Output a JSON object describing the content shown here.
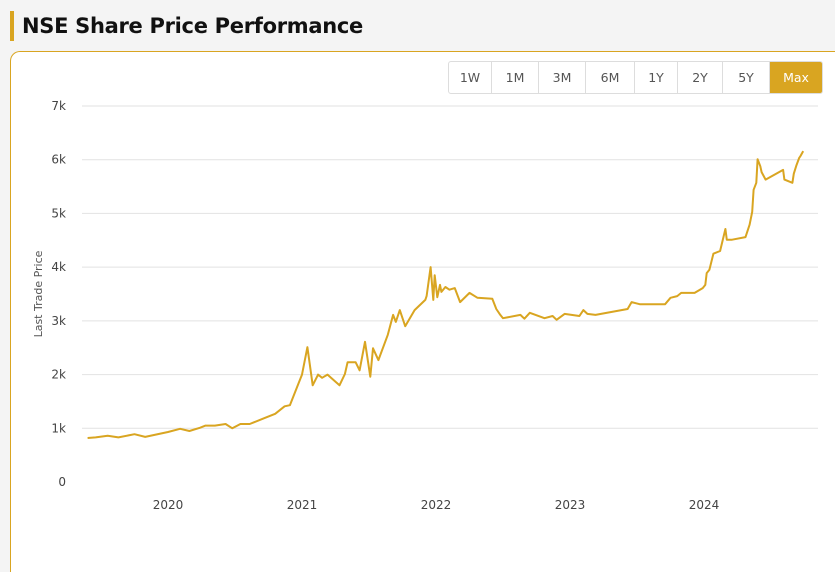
{
  "header": {
    "title": "NSE Share Price Performance"
  },
  "range_buttons": [
    {
      "label": "1W",
      "active": false
    },
    {
      "label": "1M",
      "active": false
    },
    {
      "label": "3M",
      "active": false
    },
    {
      "label": "6M",
      "active": false
    },
    {
      "label": "1Y",
      "active": false
    },
    {
      "label": "2Y",
      "active": false
    },
    {
      "label": "5Y",
      "active": false
    },
    {
      "label": "Max",
      "active": true
    }
  ],
  "colors": {
    "accent": "#d9a521",
    "line": "#d9a521",
    "grid": "#e2e2e2"
  },
  "chart_data": {
    "type": "line",
    "title": "",
    "xlabel": "",
    "ylabel": "Last Trade Price",
    "ylim": [
      0,
      7000
    ],
    "xlim": [
      2019.4,
      2024.74
    ],
    "yticks": [
      {
        "v": 0,
        "label": "0"
      },
      {
        "v": 1000,
        "label": "1k"
      },
      {
        "v": 2000,
        "label": "2k"
      },
      {
        "v": 3000,
        "label": "3k"
      },
      {
        "v": 4000,
        "label": "4k"
      },
      {
        "v": 5000,
        "label": "5k"
      },
      {
        "v": 6000,
        "label": "6k"
      },
      {
        "v": 7000,
        "label": "7k"
      }
    ],
    "xticks": [
      {
        "v": 2020,
        "label": "2020"
      },
      {
        "v": 2021,
        "label": "2021"
      },
      {
        "v": 2022,
        "label": "2022"
      },
      {
        "v": 2023,
        "label": "2023"
      },
      {
        "v": 2024,
        "label": "2024"
      }
    ],
    "grid": true,
    "series": [
      {
        "name": "Last Trade Price",
        "points": [
          [
            2019.4,
            820
          ],
          [
            2019.46,
            830
          ],
          [
            2019.55,
            860
          ],
          [
            2019.63,
            830
          ],
          [
            2019.75,
            890
          ],
          [
            2019.83,
            840
          ],
          [
            2020.0,
            930
          ],
          [
            2020.09,
            990
          ],
          [
            2020.16,
            950
          ],
          [
            2020.24,
            1010
          ],
          [
            2020.28,
            1050
          ],
          [
            2020.35,
            1050
          ],
          [
            2020.43,
            1080
          ],
          [
            2020.48,
            1000
          ],
          [
            2020.54,
            1080
          ],
          [
            2020.61,
            1080
          ],
          [
            2020.72,
            1190
          ],
          [
            2020.8,
            1270
          ],
          [
            2020.87,
            1410
          ],
          [
            2020.91,
            1430
          ],
          [
            2021.0,
            2000
          ],
          [
            2021.04,
            2510
          ],
          [
            2021.08,
            1800
          ],
          [
            2021.12,
            2000
          ],
          [
            2021.15,
            1940
          ],
          [
            2021.19,
            2000
          ],
          [
            2021.28,
            1800
          ],
          [
            2021.32,
            2010
          ],
          [
            2021.34,
            2230
          ],
          [
            2021.4,
            2230
          ],
          [
            2021.43,
            2080
          ],
          [
            2021.47,
            2610
          ],
          [
            2021.51,
            1960
          ],
          [
            2021.53,
            2490
          ],
          [
            2021.57,
            2270
          ],
          [
            2021.64,
            2740
          ],
          [
            2021.68,
            3110
          ],
          [
            2021.7,
            2980
          ],
          [
            2021.73,
            3200
          ],
          [
            2021.77,
            2900
          ],
          [
            2021.84,
            3200
          ],
          [
            2021.92,
            3390
          ],
          [
            2021.93,
            3460
          ],
          [
            2021.96,
            4000
          ],
          [
            2021.98,
            3390
          ],
          [
            2021.99,
            3850
          ],
          [
            2022.01,
            3440
          ],
          [
            2022.03,
            3670
          ],
          [
            2022.04,
            3540
          ],
          [
            2022.07,
            3630
          ],
          [
            2022.1,
            3580
          ],
          [
            2022.14,
            3610
          ],
          [
            2022.18,
            3350
          ],
          [
            2022.25,
            3520
          ],
          [
            2022.31,
            3430
          ],
          [
            2022.42,
            3410
          ],
          [
            2022.45,
            3220
          ],
          [
            2022.48,
            3110
          ],
          [
            2022.5,
            3050
          ],
          [
            2022.63,
            3110
          ],
          [
            2022.66,
            3040
          ],
          [
            2022.7,
            3150
          ],
          [
            2022.81,
            3050
          ],
          [
            2022.87,
            3090
          ],
          [
            2022.9,
            3020
          ],
          [
            2022.96,
            3130
          ],
          [
            2023.07,
            3090
          ],
          [
            2023.1,
            3200
          ],
          [
            2023.13,
            3130
          ],
          [
            2023.19,
            3110
          ],
          [
            2023.43,
            3220
          ],
          [
            2023.46,
            3350
          ],
          [
            2023.52,
            3310
          ],
          [
            2023.71,
            3310
          ],
          [
            2023.75,
            3430
          ],
          [
            2023.8,
            3460
          ],
          [
            2023.83,
            3520
          ],
          [
            2023.93,
            3520
          ],
          [
            2023.99,
            3610
          ],
          [
            2024.01,
            3670
          ],
          [
            2024.02,
            3890
          ],
          [
            2024.04,
            3950
          ],
          [
            2024.07,
            4250
          ],
          [
            2024.12,
            4300
          ],
          [
            2024.16,
            4710
          ],
          [
            2024.17,
            4510
          ],
          [
            2024.21,
            4510
          ],
          [
            2024.31,
            4560
          ],
          [
            2024.34,
            4790
          ],
          [
            2024.36,
            5030
          ],
          [
            2024.37,
            5440
          ],
          [
            2024.39,
            5570
          ],
          [
            2024.4,
            6010
          ],
          [
            2024.42,
            5880
          ],
          [
            2024.43,
            5770
          ],
          [
            2024.46,
            5630
          ],
          [
            2024.59,
            5810
          ],
          [
            2024.6,
            5630
          ],
          [
            2024.66,
            5570
          ],
          [
            2024.67,
            5740
          ],
          [
            2024.69,
            5900
          ],
          [
            2024.71,
            6030
          ],
          [
            2024.72,
            6070
          ],
          [
            2024.74,
            6160
          ]
        ]
      }
    ]
  }
}
